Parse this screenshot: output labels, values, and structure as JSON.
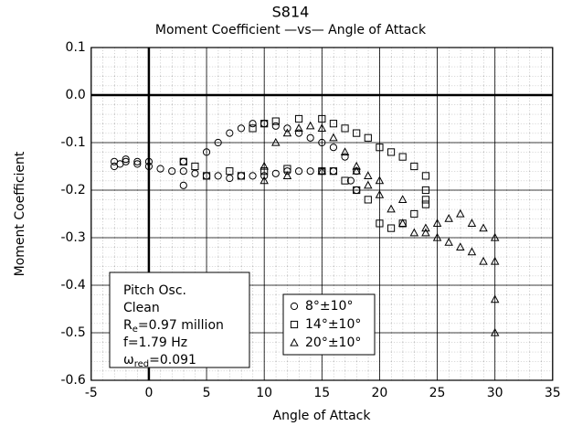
{
  "chart_data": {
    "type": "scatter",
    "title": "S814",
    "subtitle": "Moment Coefficient —vs— Angle of Attack",
    "x_label": "Angle of Attack",
    "y_label": "Moment Coefficient",
    "xlim": [
      -5,
      35
    ],
    "ylim": [
      -0.6,
      0.1
    ],
    "xticks": [
      -5,
      0,
      5,
      10,
      15,
      20,
      25,
      30,
      35
    ],
    "yticks": [
      0.1,
      {
        "value": 0,
        "label": "0.0"
      },
      -0.1,
      -0.2,
      -0.3,
      -0.4,
      -0.5,
      -0.6
    ],
    "grid": true,
    "zero_lines": true,
    "annotations": [
      "Pitch Osc.",
      "Clean",
      {
        "base": "R",
        "sub": "e",
        "after": "=0.97 million"
      },
      "f=1.79 Hz",
      {
        "base": "ω",
        "sub": "red",
        "after": "=0.091"
      }
    ],
    "series": [
      {
        "name": "8°±10°",
        "marker": "circle",
        "color": "#000000",
        "x": [
          -3,
          -2.5,
          -2,
          -1,
          0,
          1,
          2,
          3,
          4,
          5,
          6,
          7,
          8,
          9,
          10,
          11,
          12,
          13,
          14,
          15,
          16,
          -3,
          -2,
          -1,
          0,
          3,
          3,
          5,
          6,
          7,
          8,
          9,
          10,
          11,
          12,
          13,
          14,
          15,
          16,
          17,
          18,
          18,
          17.5
        ],
        "values": [
          -0.14,
          -0.145,
          -0.14,
          -0.14,
          -0.15,
          -0.155,
          -0.16,
          -0.16,
          -0.165,
          -0.17,
          -0.17,
          -0.175,
          -0.17,
          -0.17,
          -0.17,
          -0.165,
          -0.16,
          -0.16,
          -0.16,
          -0.16,
          -0.16,
          -0.15,
          -0.135,
          -0.145,
          -0.14,
          -0.14,
          -0.19,
          -0.12,
          -0.1,
          -0.08,
          -0.07,
          -0.06,
          -0.06,
          -0.065,
          -0.07,
          -0.08,
          -0.09,
          -0.1,
          -0.11,
          -0.13,
          -0.16,
          -0.2,
          -0.18
        ]
      },
      {
        "name": "14°±10°",
        "marker": "square",
        "color": "#000000",
        "x": [
          3,
          5,
          8,
          10,
          12,
          15,
          16,
          17,
          18,
          19,
          20,
          21,
          22,
          23,
          24,
          9,
          10,
          11,
          13,
          15,
          16,
          17,
          18,
          19,
          20,
          21,
          22,
          23,
          24,
          24,
          24,
          4,
          7
        ],
        "values": [
          -0.14,
          -0.17,
          -0.17,
          -0.16,
          -0.155,
          -0.16,
          -0.16,
          -0.18,
          -0.2,
          -0.22,
          -0.27,
          -0.28,
          -0.27,
          -0.25,
          -0.22,
          -0.07,
          -0.06,
          -0.055,
          -0.05,
          -0.05,
          -0.06,
          -0.07,
          -0.08,
          -0.09,
          -0.11,
          -0.12,
          -0.13,
          -0.15,
          -0.17,
          -0.2,
          -0.23,
          -0.15,
          -0.16
        ]
      },
      {
        "name": "20°±10°",
        "marker": "triangle",
        "color": "#000000",
        "x": [
          10,
          11,
          12,
          13,
          14,
          15,
          16,
          17,
          18,
          19,
          20,
          21,
          22,
          23,
          24,
          25,
          26,
          27,
          28,
          29,
          30,
          30,
          30,
          30,
          29,
          28,
          27,
          26,
          25,
          24,
          22,
          20,
          19,
          18,
          15,
          12,
          10
        ],
        "values": [
          -0.15,
          -0.1,
          -0.08,
          -0.07,
          -0.065,
          -0.07,
          -0.09,
          -0.12,
          -0.15,
          -0.19,
          -0.21,
          -0.24,
          -0.27,
          -0.29,
          -0.28,
          -0.27,
          -0.26,
          -0.25,
          -0.27,
          -0.28,
          -0.3,
          -0.35,
          -0.43,
          -0.5,
          -0.35,
          -0.33,
          -0.32,
          -0.31,
          -0.3,
          -0.29,
          -0.22,
          -0.18,
          -0.17,
          -0.16,
          -0.16,
          -0.17,
          -0.18
        ]
      }
    ]
  }
}
